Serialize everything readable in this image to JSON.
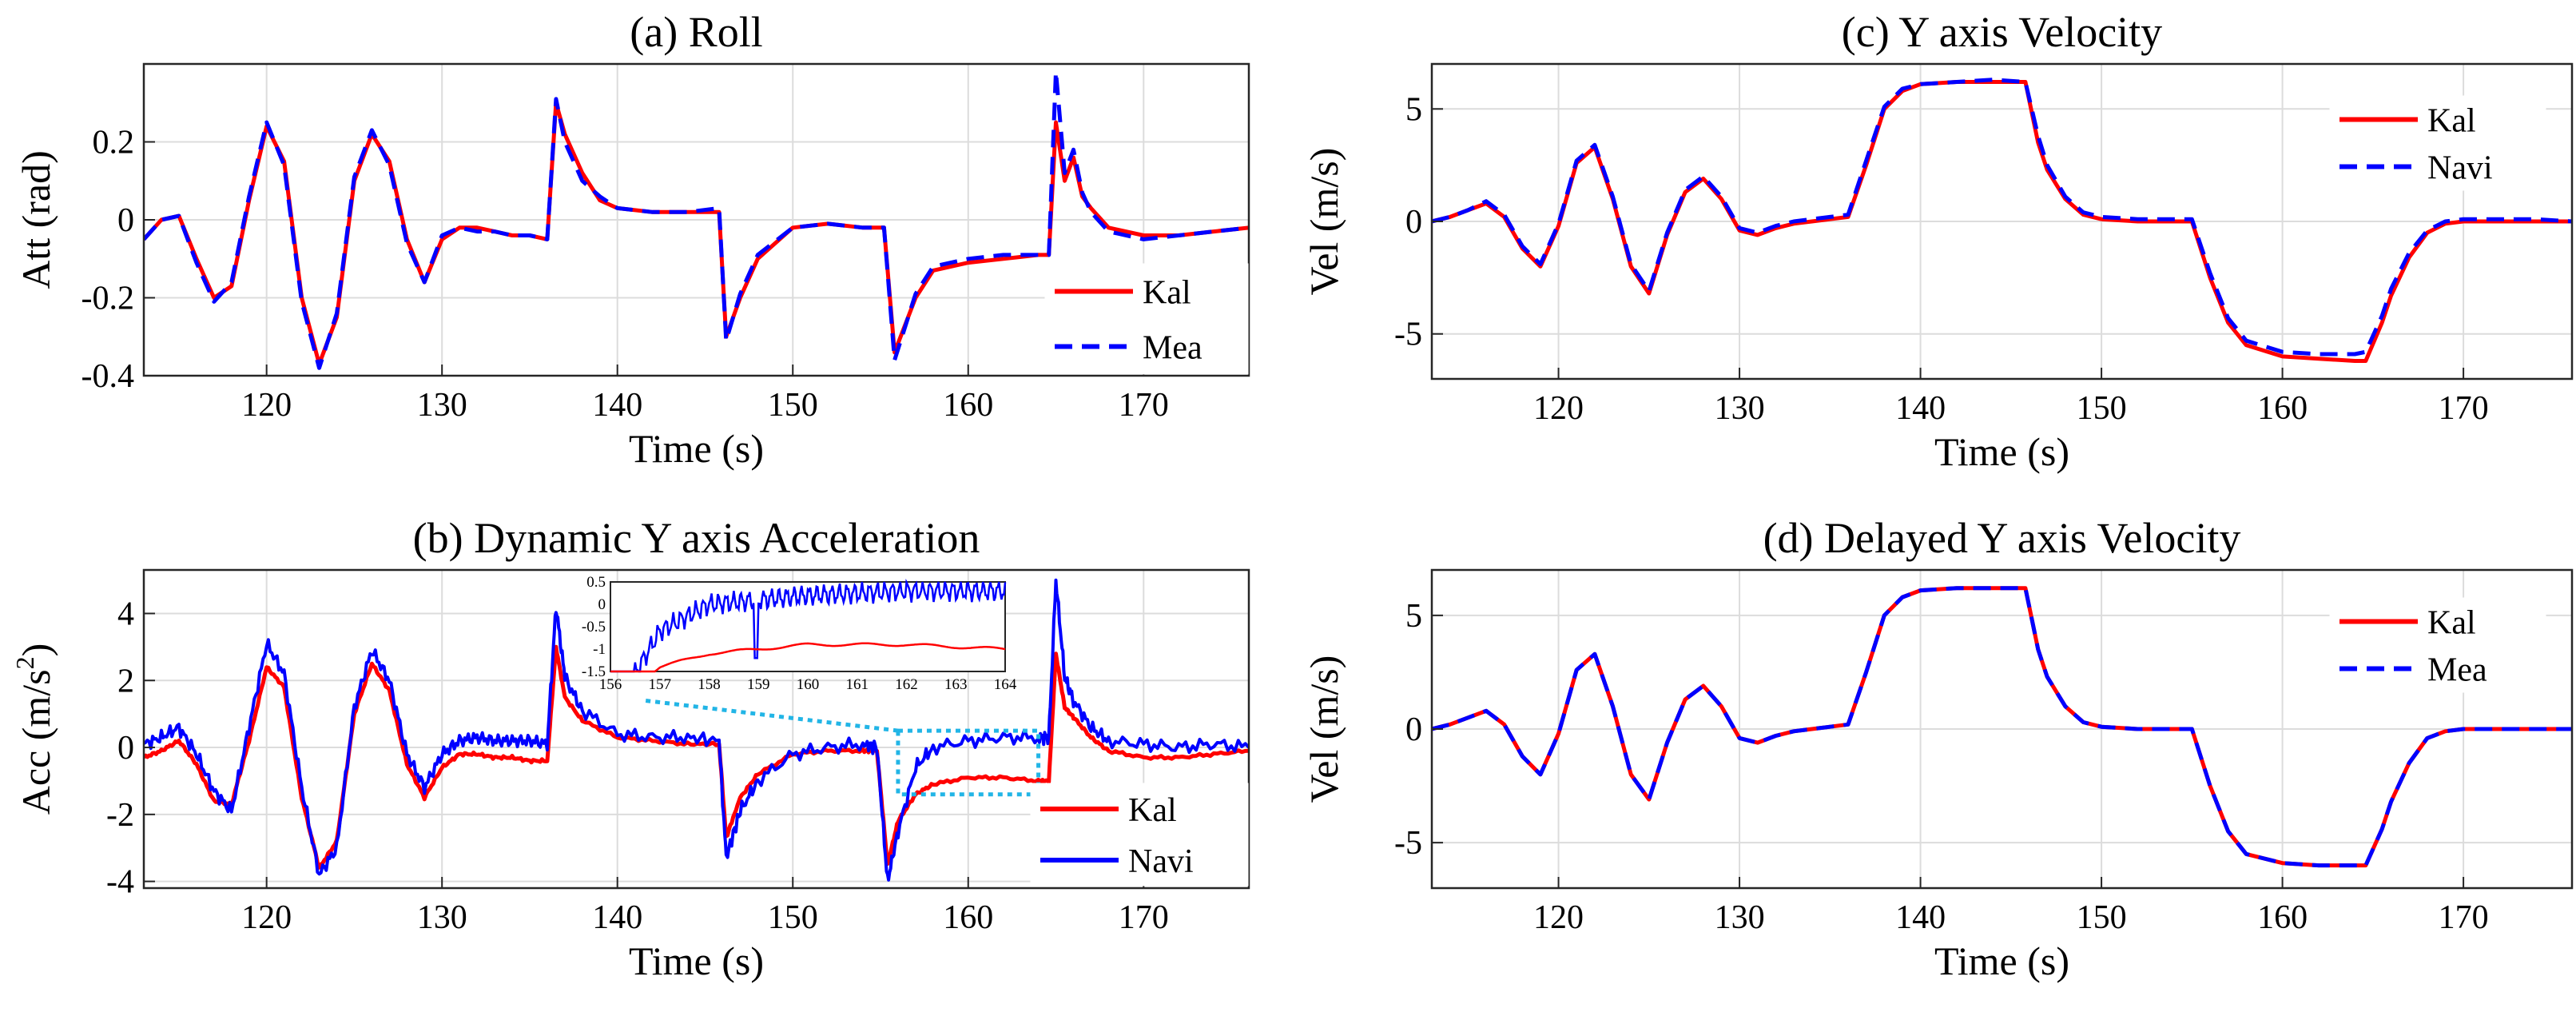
{
  "chart_data": [
    {
      "id": "a",
      "type": "line",
      "title": "(a) Roll",
      "xlabel": "Time (s)",
      "ylabel": "Att (rad)",
      "xlim": [
        113,
        176
      ],
      "ylim": [
        -0.4,
        0.4
      ],
      "xticks": [
        120,
        130,
        140,
        150,
        160,
        170
      ],
      "yticks": [
        0.2,
        0,
        -0.2,
        -0.4
      ],
      "ytick_labels": [
        "0.2",
        "0",
        "-0.2",
        "-0.4"
      ],
      "grid": true,
      "legend_position": "bottom-right",
      "series": [
        {
          "name": "Kal",
          "color": "#ff0000",
          "style": "solid",
          "x": [
            113,
            114,
            115,
            116,
            117,
            118,
            119,
            120,
            121,
            122,
            123,
            124,
            125,
            126,
            127,
            128,
            129,
            130,
            131,
            132,
            133,
            134,
            135,
            136,
            136.5,
            137,
            138,
            139,
            140,
            142,
            144,
            145.8,
            146.2,
            147,
            148,
            150,
            152,
            154,
            155.2,
            155.8,
            157,
            158,
            160,
            162,
            164,
            164.6,
            165,
            165.5,
            166,
            166.5,
            167,
            168,
            170,
            172,
            174,
            176
          ],
          "y": [
            -0.05,
            0.0,
            0.01,
            -0.1,
            -0.2,
            -0.17,
            0.05,
            0.24,
            0.15,
            -0.2,
            -0.37,
            -0.25,
            0.1,
            0.22,
            0.15,
            -0.05,
            -0.16,
            -0.05,
            -0.02,
            -0.02,
            -0.03,
            -0.04,
            -0.04,
            -0.05,
            0.3,
            0.22,
            0.12,
            0.05,
            0.03,
            0.02,
            0.02,
            0.02,
            -0.3,
            -0.2,
            -0.1,
            -0.02,
            -0.01,
            -0.02,
            -0.02,
            -0.34,
            -0.2,
            -0.13,
            -0.11,
            -0.1,
            -0.09,
            -0.09,
            0.25,
            0.1,
            0.16,
            0.06,
            0.03,
            -0.02,
            -0.04,
            -0.04,
            -0.03,
            -0.02
          ]
        },
        {
          "name": "Mea",
          "color": "#0000ff",
          "style": "dashed",
          "x": [
            113,
            114,
            115,
            116,
            117,
            118,
            119,
            120,
            121,
            122,
            123,
            124,
            125,
            126,
            127,
            128,
            129,
            130,
            131,
            132,
            133,
            134,
            135,
            136,
            136.5,
            137,
            138,
            139,
            140,
            142,
            144,
            145.8,
            146.2,
            147,
            148,
            150,
            152,
            154,
            155.2,
            155.8,
            157,
            158,
            160,
            162,
            164,
            164.6,
            165,
            165.5,
            166,
            166.5,
            167,
            168,
            170,
            172,
            174,
            176
          ],
          "y": [
            -0.05,
            0.0,
            0.01,
            -0.11,
            -0.21,
            -0.16,
            0.06,
            0.25,
            0.14,
            -0.21,
            -0.38,
            -0.24,
            0.11,
            0.23,
            0.14,
            -0.06,
            -0.16,
            -0.04,
            -0.02,
            -0.03,
            -0.03,
            -0.04,
            -0.04,
            -0.05,
            0.31,
            0.2,
            0.1,
            0.06,
            0.03,
            0.02,
            0.02,
            0.03,
            -0.31,
            -0.19,
            -0.09,
            -0.02,
            -0.01,
            -0.02,
            -0.02,
            -0.36,
            -0.19,
            -0.12,
            -0.1,
            -0.09,
            -0.09,
            -0.09,
            0.38,
            0.12,
            0.18,
            0.07,
            0.02,
            -0.03,
            -0.05,
            -0.04,
            -0.03,
            -0.02
          ]
        }
      ]
    },
    {
      "id": "b",
      "type": "line",
      "title": "(b) Dynamic Y axis Acceleration",
      "xlabel": "Time (s)",
      "ylabel_prefix": "Acc (m/s",
      "ylabel_exponent": "2",
      "ylabel_suffix": ")",
      "xlim": [
        113,
        176
      ],
      "ylim": [
        -4.2,
        5.3
      ],
      "xticks": [
        120,
        130,
        140,
        150,
        160,
        170
      ],
      "yticks": [
        4,
        2,
        0,
        -2,
        -4
      ],
      "ytick_labels": [
        "4",
        "2",
        "0",
        "-2",
        "-4"
      ],
      "grid": true,
      "legend_position": "bottom-right",
      "zoom_box_x": [
        156,
        164
      ],
      "zoom_box_y": [
        -1.4,
        0.5
      ],
      "inset": {
        "xlim": [
          156,
          164
        ],
        "ylim": [
          -1.5,
          0.5
        ],
        "xticks": [
          156,
          157,
          158,
          159,
          160,
          161,
          162,
          163,
          164
        ],
        "xtick_labels": [
          "156",
          "157",
          "158",
          "159",
          "160",
          "161",
          "162",
          "163",
          "164"
        ],
        "yticks": [
          0.5,
          0,
          -0.5,
          -1,
          -1.5
        ],
        "ytick_labels": [
          "0.5",
          "0",
          "-0.5",
          "-1",
          "-1.5"
        ]
      },
      "series": [
        {
          "name": "Kal",
          "color": "#ff0000",
          "style": "solid",
          "x": [
            113,
            114,
            115,
            116,
            117,
            118,
            119,
            120,
            121,
            122,
            123,
            124,
            125,
            126,
            127,
            128,
            129,
            130,
            131,
            132,
            133,
            134,
            135,
            136,
            136.5,
            137,
            138,
            140,
            142,
            144,
            145.8,
            146.2,
            147,
            148,
            150,
            152,
            154,
            154.8,
            155.4,
            156,
            157,
            158,
            160,
            162,
            164,
            164.6,
            165,
            165.5,
            166,
            167,
            168,
            170,
            172,
            174,
            176
          ],
          "y": [
            -0.3,
            -0.1,
            0.2,
            -0.5,
            -1.6,
            -1.7,
            0.2,
            2.4,
            1.8,
            -1.5,
            -3.6,
            -2.8,
            1.0,
            2.5,
            1.7,
            -0.5,
            -1.5,
            -0.6,
            -0.2,
            -0.2,
            -0.3,
            -0.3,
            -0.4,
            -0.4,
            3.0,
            1.5,
            0.8,
            0.3,
            0.2,
            0.1,
            0.1,
            -2.7,
            -1.5,
            -0.8,
            -0.2,
            -0.1,
            -0.1,
            -0.1,
            -3.5,
            -2.2,
            -1.4,
            -1.1,
            -0.9,
            -0.9,
            -1.0,
            -1.0,
            2.8,
            1.2,
            0.9,
            0.3,
            -0.1,
            -0.3,
            -0.3,
            -0.2,
            -0.1
          ]
        },
        {
          "name": "Navi",
          "color": "#0000ff",
          "style": "solid",
          "x": [
            113,
            114,
            115,
            116,
            117,
            118,
            119,
            120,
            121,
            122,
            123,
            124,
            125,
            126,
            127,
            128,
            129,
            130,
            131,
            132,
            133,
            134,
            135,
            136,
            136.5,
            137,
            138,
            140,
            142,
            144,
            145.8,
            146.2,
            147,
            148,
            150,
            152,
            154,
            154.8,
            155.4,
            156,
            157,
            158,
            160,
            162,
            164,
            164.6,
            165,
            165.5,
            166,
            167,
            168,
            170,
            172,
            174,
            176
          ],
          "y": [
            0.1,
            0.3,
            0.6,
            -0.2,
            -1.3,
            -1.9,
            0.6,
            3.1,
            2.2,
            -1.2,
            -3.8,
            -3.0,
            1.2,
            2.9,
            2.0,
            -0.2,
            -1.2,
            -0.2,
            0.2,
            0.3,
            0.2,
            0.2,
            0.2,
            0.1,
            4.2,
            2.1,
            1.1,
            0.4,
            0.3,
            0.3,
            0.2,
            -3.3,
            -1.9,
            -1.0,
            -0.2,
            0.0,
            0.1,
            0.0,
            -4.0,
            -2.5,
            -0.6,
            0.0,
            0.2,
            0.3,
            0.3,
            0.3,
            5.0,
            2.1,
            1.4,
            0.6,
            0.2,
            0.1,
            0.0,
            0.1,
            0.0
          ]
        }
      ]
    },
    {
      "id": "c",
      "type": "line",
      "title": "(c) Y axis Velocity",
      "xlabel": "Time (s)",
      "ylabel": "Vel (m/s)",
      "xlim": [
        113,
        176
      ],
      "ylim": [
        -7,
        7
      ],
      "xticks": [
        120,
        130,
        140,
        150,
        160,
        170
      ],
      "yticks": [
        5,
        0,
        -5
      ],
      "ytick_labels": [
        "5",
        "0",
        "-5"
      ],
      "grid": true,
      "legend_position": "top-right",
      "series": [
        {
          "name": "Kal",
          "color": "#ff0000",
          "style": "solid",
          "x": [
            113,
            114,
            115,
            116,
            117,
            118,
            119,
            120,
            121,
            122,
            123,
            124,
            125,
            126,
            127,
            128,
            129,
            130,
            131,
            132,
            133,
            134,
            135,
            136,
            137,
            138,
            139,
            140,
            142,
            144,
            145.8,
            146.5,
            147,
            148,
            149,
            150,
            152,
            154,
            155,
            156,
            157,
            158,
            160,
            162,
            164,
            164.6,
            165.5,
            166,
            167,
            168,
            169,
            170,
            172,
            174,
            176
          ],
          "y": [
            0,
            0.2,
            0.5,
            0.8,
            0.2,
            -1.2,
            -2.0,
            -0.2,
            2.6,
            3.3,
            1.0,
            -2.0,
            -3.2,
            -0.6,
            1.3,
            1.9,
            1.0,
            -0.4,
            -0.6,
            -0.3,
            -0.1,
            0,
            0.1,
            0.2,
            2.5,
            5.0,
            5.8,
            6.1,
            6.2,
            6.2,
            6.2,
            3.5,
            2.3,
            1.0,
            0.3,
            0.1,
            0,
            0,
            0,
            -2.5,
            -4.5,
            -5.5,
            -6.0,
            -6.1,
            -6.2,
            -6.2,
            -4.5,
            -3.3,
            -1.6,
            -0.5,
            -0.1,
            0,
            0,
            0,
            0
          ]
        },
        {
          "name": "Navi",
          "color": "#0000ff",
          "style": "dashed",
          "x": [
            113,
            114,
            115,
            116,
            117,
            118,
            119,
            120,
            121,
            122,
            123,
            124,
            125,
            126,
            127,
            128,
            129,
            130,
            131,
            132,
            133,
            134,
            135,
            136,
            137,
            138,
            139,
            140,
            142,
            144,
            145.8,
            146.5,
            147,
            148,
            149,
            150,
            152,
            154,
            155,
            156,
            157,
            158,
            160,
            162,
            164,
            164.6,
            165.5,
            166,
            167,
            168,
            169,
            170,
            172,
            174,
            176
          ],
          "y": [
            0,
            0.2,
            0.5,
            0.9,
            0.3,
            -1.1,
            -1.9,
            -0.1,
            2.7,
            3.4,
            1.1,
            -1.9,
            -3.1,
            -0.5,
            1.4,
            2.0,
            1.1,
            -0.3,
            -0.5,
            -0.2,
            0,
            0.1,
            0.2,
            0.3,
            2.7,
            5.1,
            5.9,
            6.1,
            6.2,
            6.3,
            6.2,
            3.8,
            2.5,
            1.1,
            0.4,
            0.2,
            0.1,
            0.1,
            0.1,
            -2.3,
            -4.3,
            -5.3,
            -5.8,
            -5.9,
            -5.9,
            -5.8,
            -4.2,
            -3.0,
            -1.4,
            -0.4,
            0,
            0.1,
            0.1,
            0.1,
            0
          ]
        }
      ]
    },
    {
      "id": "d",
      "type": "line",
      "title": "(d) Delayed Y axis Velocity",
      "xlabel": "Time (s)",
      "ylabel": "Vel (m/s)",
      "xlim": [
        113,
        176
      ],
      "ylim": [
        -7,
        7
      ],
      "xticks": [
        120,
        130,
        140,
        150,
        160,
        170
      ],
      "yticks": [
        5,
        0,
        -5
      ],
      "ytick_labels": [
        "5",
        "0",
        "-5"
      ],
      "grid": true,
      "legend_position": "top-right",
      "series": [
        {
          "name": "Kal",
          "color": "#ff0000",
          "style": "solid",
          "x": [
            113,
            114,
            115,
            116,
            117,
            118,
            119,
            120,
            121,
            122,
            123,
            124,
            125,
            126,
            127,
            128,
            129,
            130,
            131,
            132,
            133,
            134,
            135,
            136,
            137,
            138,
            139,
            140,
            142,
            144,
            145.8,
            146.5,
            147,
            148,
            149,
            150,
            152,
            154,
            155,
            156,
            157,
            158,
            160,
            162,
            164,
            164.6,
            165.5,
            166,
            167,
            168,
            169,
            170,
            172,
            174,
            176
          ],
          "y": [
            0,
            0.2,
            0.5,
            0.8,
            0.2,
            -1.2,
            -2.0,
            -0.2,
            2.6,
            3.3,
            1.0,
            -2.0,
            -3.1,
            -0.6,
            1.3,
            1.9,
            1.0,
            -0.4,
            -0.6,
            -0.3,
            -0.1,
            0,
            0.1,
            0.2,
            2.5,
            5.0,
            5.8,
            6.1,
            6.2,
            6.2,
            6.2,
            3.5,
            2.3,
            1.0,
            0.3,
            0.1,
            0,
            0,
            0,
            -2.5,
            -4.5,
            -5.5,
            -5.9,
            -6.0,
            -6.0,
            -6.0,
            -4.4,
            -3.2,
            -1.5,
            -0.4,
            -0.1,
            0,
            0,
            0,
            0
          ]
        },
        {
          "name": "Mea",
          "color": "#0000ff",
          "style": "dashed",
          "x": [
            113,
            114,
            115,
            116,
            117,
            118,
            119,
            120,
            121,
            122,
            123,
            124,
            125,
            126,
            127,
            128,
            129,
            130,
            131,
            132,
            133,
            134,
            135,
            136,
            137,
            138,
            139,
            140,
            142,
            144,
            145.8,
            146.5,
            147,
            148,
            149,
            150,
            152,
            154,
            155,
            156,
            157,
            158,
            160,
            162,
            164,
            164.6,
            165.5,
            166,
            167,
            168,
            169,
            170,
            172,
            174,
            176
          ],
          "y": [
            0,
            0.2,
            0.5,
            0.8,
            0.2,
            -1.2,
            -2.0,
            -0.2,
            2.6,
            3.3,
            1.0,
            -2.0,
            -3.1,
            -0.6,
            1.3,
            1.9,
            1.0,
            -0.4,
            -0.6,
            -0.3,
            -0.1,
            0,
            0.1,
            0.2,
            2.5,
            5.0,
            5.8,
            6.1,
            6.2,
            6.2,
            6.2,
            3.5,
            2.3,
            1.0,
            0.3,
            0.1,
            0,
            0,
            0,
            -2.5,
            -4.5,
            -5.5,
            -5.9,
            -6.0,
            -6.0,
            -6.0,
            -4.4,
            -3.2,
            -1.5,
            -0.4,
            -0.1,
            0,
            0,
            0,
            0
          ]
        }
      ]
    }
  ]
}
